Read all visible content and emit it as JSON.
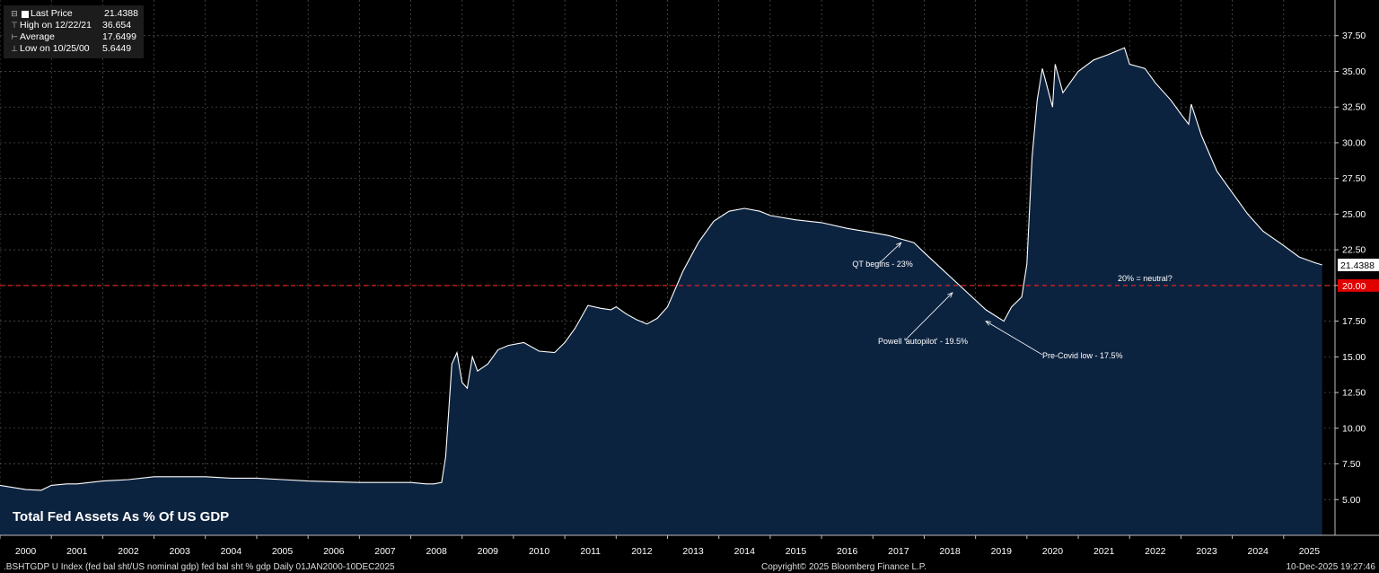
{
  "legend": {
    "rows": [
      {
        "label": "Last Price",
        "value": "21.4388",
        "icon": "square-icon"
      },
      {
        "label": "High on 12/22/21",
        "value": "36.654",
        "icon": "high-marker-icon"
      },
      {
        "label": "Average",
        "value": "17.6499",
        "icon": "average-marker-icon"
      },
      {
        "label": "Low on 10/25/00",
        "value": "5.6449",
        "icon": "low-marker-icon"
      }
    ]
  },
  "footer": {
    "left": ".BSHTGDP U Index (fed bal sht/US nominal gdp) fed bal sht % gdp Daily 01JAN2000-10DEC2025",
    "center": "Copyright© 2025 Bloomberg Finance L.P.",
    "right": "10-Dec-2025 19:27:46"
  },
  "colors": {
    "background": "#000000",
    "area_fill": "#0c2340",
    "line": "#ffffff",
    "grid": "#5a5a5a",
    "reference_line": "#e02020",
    "last_price_tag_bg": "#ffffff",
    "reference_tag_bg": "#e00000"
  },
  "chart_data": {
    "type": "area",
    "title": "Total Fed Assets As % Of US GDP",
    "xlabel": "",
    "ylabel": "",
    "x_ticks": [
      "2000",
      "2001",
      "2002",
      "2003",
      "2004",
      "2005",
      "2006",
      "2007",
      "2008",
      "2009",
      "2010",
      "2011",
      "2012",
      "2013",
      "2014",
      "2015",
      "2016",
      "2017",
      "2018",
      "2019",
      "2020",
      "2021",
      "2022",
      "2023",
      "2024",
      "2025"
    ],
    "y_ticks": [
      "5.00",
      "7.50",
      "10.00",
      "12.50",
      "15.00",
      "17.50",
      "20.00",
      "22.50",
      "25.00",
      "27.50",
      "30.00",
      "32.50",
      "35.00",
      "37.50"
    ],
    "xlim": [
      2000.0,
      2026.0
    ],
    "ylim": [
      2.5,
      40.0
    ],
    "grid": true,
    "y_axis_side": "right",
    "series": [
      {
        "x": [
          2000.0,
          2000.5,
          2000.8,
          2001.0,
          2001.3,
          2001.5,
          2002.0,
          2002.5,
          2003.0,
          2003.5,
          2004.0,
          2004.5,
          2005.0,
          2005.5,
          2006.0,
          2006.5,
          2007.0,
          2007.5,
          2008.0,
          2008.3,
          2008.45,
          2008.6,
          2008.68,
          2008.8,
          2008.9,
          2009.0,
          2009.1,
          2009.2,
          2009.3,
          2009.5,
          2009.7,
          2009.9,
          2010.2,
          2010.5,
          2010.8,
          2011.0,
          2011.2,
          2011.45,
          2011.7,
          2011.9,
          2012.0,
          2012.2,
          2012.4,
          2012.6,
          2012.8,
          2013.0,
          2013.3,
          2013.6,
          2013.9,
          2014.2,
          2014.5,
          2014.8,
          2015.0,
          2015.5,
          2016.0,
          2016.5,
          2017.0,
          2017.3,
          2017.6,
          2017.8,
          2018.0,
          2018.3,
          2018.6,
          2018.9,
          2019.2,
          2019.55,
          2019.7,
          2019.9,
          2020.0,
          2020.1,
          2020.2,
          2020.3,
          2020.5,
          2020.55,
          2020.7,
          2020.9,
          2021.0,
          2021.3,
          2021.6,
          2021.9,
          2022.0,
          2022.3,
          2022.5,
          2022.8,
          2023.0,
          2023.15,
          2023.2,
          2023.4,
          2023.7,
          2024.0,
          2024.3,
          2024.6,
          2025.0,
          2025.3,
          2025.6,
          2025.75
        ],
        "y": [
          6.0,
          5.7,
          5.65,
          6.0,
          6.1,
          6.1,
          6.3,
          6.4,
          6.6,
          6.6,
          6.6,
          6.5,
          6.5,
          6.4,
          6.3,
          6.25,
          6.2,
          6.2,
          6.2,
          6.1,
          6.1,
          6.2,
          8.0,
          14.5,
          15.3,
          13.2,
          12.8,
          15.0,
          14.0,
          14.5,
          15.5,
          15.8,
          16.0,
          15.4,
          15.3,
          16.0,
          17.0,
          18.6,
          18.4,
          18.3,
          18.5,
          18.0,
          17.6,
          17.3,
          17.7,
          18.5,
          21.0,
          23.0,
          24.5,
          25.2,
          25.4,
          25.2,
          24.9,
          24.6,
          24.4,
          24.0,
          23.7,
          23.5,
          23.2,
          23.0,
          22.3,
          21.3,
          20.3,
          19.3,
          18.3,
          17.5,
          18.5,
          19.2,
          21.5,
          29.0,
          33.0,
          35.2,
          32.5,
          35.5,
          33.5,
          34.5,
          35.0,
          35.8,
          36.2,
          36.65,
          35.5,
          35.2,
          34.2,
          33.0,
          32.0,
          31.3,
          32.7,
          30.5,
          28.0,
          26.5,
          25.0,
          23.8,
          22.8,
          22.0,
          21.6,
          21.4388
        ]
      }
    ],
    "reference_line": {
      "y": 20.0,
      "label": "20.00"
    },
    "last_value_label": "21.4388",
    "annotations": [
      {
        "text": "QT begins - 23%",
        "x": 2017.55,
        "y": 23.0,
        "text_x": 2016.6,
        "text_y": 21.3
      },
      {
        "text": "Powell 'autopilot' - 19.5%",
        "x": 2018.55,
        "y": 19.5,
        "text_x": 2017.1,
        "text_y": 15.9
      },
      {
        "text": "Pre-Covid low - 17.5%",
        "x": 2019.2,
        "y": 17.5,
        "text_x": 2020.3,
        "text_y": 14.9
      },
      {
        "text": "20% = neutral?",
        "x": 2022.3,
        "y": 20.3,
        "text_x": 2022.3,
        "text_y": 20.3
      }
    ]
  }
}
